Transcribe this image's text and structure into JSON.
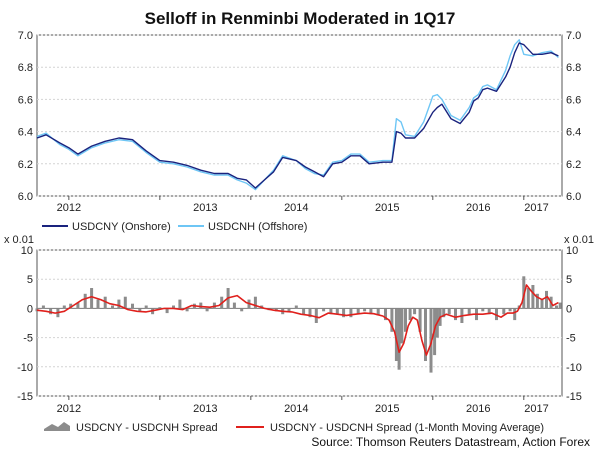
{
  "chart_data": {
    "title": "Selloff in Renminbi Moderated in 1Q17",
    "source": "Source: Thomson Reuters Datastream, Action Forex",
    "x_tick_labels": [
      "2012",
      "2013",
      "2014",
      "2015",
      "2016",
      "2017"
    ],
    "x_range": [
      2011.65,
      2017.42
    ],
    "panels": [
      {
        "type": "line",
        "ylim": [
          6.0,
          7.0
        ],
        "y_ticks": [
          "6.0",
          "6.2",
          "6.4",
          "6.6",
          "6.8",
          "7.0"
        ],
        "grid": true,
        "series": [
          {
            "name": "USDCNY (Onshore)",
            "color": "#1a237e",
            "x": [
              2011.65,
              2011.75,
              2011.9,
              2012.0,
              2012.1,
              2012.25,
              2012.4,
              2012.55,
              2012.7,
              2012.85,
              2013.0,
              2013.15,
              2013.3,
              2013.45,
              2013.6,
              2013.75,
              2013.85,
              2013.95,
              2014.05,
              2014.15,
              2014.25,
              2014.35,
              2014.5,
              2014.6,
              2014.7,
              2014.8,
              2014.9,
              2015.0,
              2015.1,
              2015.2,
              2015.3,
              2015.45,
              2015.55,
              2015.6,
              2015.65,
              2015.7,
              2015.8,
              2015.9,
              2016.0,
              2016.05,
              2016.1,
              2016.2,
              2016.3,
              2016.4,
              2016.45,
              2016.5,
              2016.55,
              2016.6,
              2016.7,
              2016.8,
              2016.85,
              2016.9,
              2016.95,
              2017.0,
              2017.1,
              2017.2,
              2017.3,
              2017.38
            ],
            "values": [
              6.36,
              6.38,
              6.33,
              6.3,
              6.26,
              6.31,
              6.34,
              6.36,
              6.35,
              6.28,
              6.22,
              6.21,
              6.19,
              6.16,
              6.14,
              6.14,
              6.11,
              6.1,
              6.05,
              6.1,
              6.15,
              6.24,
              6.22,
              6.18,
              6.15,
              6.12,
              6.2,
              6.21,
              6.25,
              6.25,
              6.2,
              6.21,
              6.21,
              6.4,
              6.39,
              6.36,
              6.36,
              6.42,
              6.52,
              6.55,
              6.57,
              6.48,
              6.45,
              6.52,
              6.59,
              6.61,
              6.66,
              6.67,
              6.65,
              6.74,
              6.8,
              6.89,
              6.95,
              6.94,
              6.88,
              6.88,
              6.89,
              6.87
            ]
          },
          {
            "name": "USDCNH (Offshore)",
            "color": "#6ec6f5",
            "x": [
              2011.65,
              2011.75,
              2011.9,
              2012.0,
              2012.1,
              2012.25,
              2012.4,
              2012.55,
              2012.7,
              2012.85,
              2013.0,
              2013.15,
              2013.3,
              2013.45,
              2013.6,
              2013.75,
              2013.85,
              2013.95,
              2014.05,
              2014.15,
              2014.25,
              2014.35,
              2014.5,
              2014.6,
              2014.7,
              2014.8,
              2014.9,
              2015.0,
              2015.1,
              2015.2,
              2015.3,
              2015.45,
              2015.55,
              2015.6,
              2015.65,
              2015.7,
              2015.8,
              2015.9,
              2016.0,
              2016.05,
              2016.1,
              2016.2,
              2016.3,
              2016.4,
              2016.45,
              2016.5,
              2016.55,
              2016.6,
              2016.7,
              2016.8,
              2016.85,
              2016.9,
              2016.95,
              2017.0,
              2017.1,
              2017.2,
              2017.3,
              2017.38
            ],
            "values": [
              6.37,
              6.39,
              6.32,
              6.29,
              6.25,
              6.3,
              6.33,
              6.35,
              6.34,
              6.27,
              6.21,
              6.2,
              6.18,
              6.15,
              6.13,
              6.13,
              6.1,
              6.08,
              6.04,
              6.1,
              6.16,
              6.25,
              6.22,
              6.17,
              6.14,
              6.13,
              6.21,
              6.22,
              6.26,
              6.26,
              6.21,
              6.22,
              6.22,
              6.48,
              6.46,
              6.38,
              6.37,
              6.46,
              6.62,
              6.63,
              6.6,
              6.5,
              6.47,
              6.55,
              6.61,
              6.63,
              6.68,
              6.69,
              6.66,
              6.78,
              6.87,
              6.94,
              6.97,
              6.88,
              6.87,
              6.89,
              6.9,
              6.86
            ]
          }
        ]
      },
      {
        "type": "bar+line",
        "ylim": [
          -15,
          10
        ],
        "y_ticks": [
          "10",
          "5",
          "0",
          "-5",
          "-10",
          "-15"
        ],
        "unit_label_left": "x 0.01",
        "unit_label_right": "x 0.01",
        "grid": true,
        "series": [
          {
            "name": "USDCNY - USDCNH Spread",
            "kind": "area",
            "color": "#8c8c8c",
            "x": [
              2011.65,
              2011.72,
              2011.8,
              2011.88,
              2011.95,
              2012.02,
              2012.1,
              2012.18,
              2012.25,
              2012.32,
              2012.4,
              2012.48,
              2012.55,
              2012.62,
              2012.7,
              2012.78,
              2012.85,
              2012.92,
              2013.0,
              2013.08,
              2013.15,
              2013.22,
              2013.3,
              2013.38,
              2013.45,
              2013.52,
              2013.6,
              2013.68,
              2013.75,
              2013.82,
              2013.9,
              2013.98,
              2014.05,
              2014.12,
              2014.2,
              2014.28,
              2014.35,
              2014.42,
              2014.5,
              2014.58,
              2014.65,
              2014.72,
              2014.8,
              2014.88,
              2014.95,
              2015.02,
              2015.1,
              2015.18,
              2015.25,
              2015.32,
              2015.4,
              2015.48,
              2015.55,
              2015.6,
              2015.63,
              2015.66,
              2015.7,
              2015.75,
              2015.8,
              2015.86,
              2015.92,
              2015.98,
              2016.02,
              2016.05,
              2016.08,
              2016.12,
              2016.18,
              2016.25,
              2016.32,
              2016.4,
              2016.48,
              2016.55,
              2016.62,
              2016.7,
              2016.78,
              2016.85,
              2016.9,
              2016.95,
              2017.0,
              2017.05,
              2017.1,
              2017.15,
              2017.2,
              2017.25,
              2017.3,
              2017.36,
              2017.4
            ],
            "values": [
              -0.5,
              0.5,
              -1,
              -1.5,
              0.5,
              0.8,
              1,
              2.5,
              3.5,
              1.5,
              2,
              0.5,
              1.5,
              2,
              0.8,
              -0.5,
              0.5,
              -1,
              0.2,
              -0.8,
              0.5,
              1.5,
              -0.5,
              0.8,
              1,
              -0.5,
              1,
              2,
              3.5,
              1,
              -0.5,
              1.5,
              2,
              0.5,
              -0.3,
              -0.5,
              -1,
              -0.5,
              0.5,
              -1,
              -1.5,
              -2.5,
              -0.5,
              -1,
              -1,
              -1.5,
              -1.5,
              -1,
              -0.5,
              -1,
              -1.2,
              -2,
              -4,
              -9,
              -10.5,
              -6,
              -4,
              -2,
              -1,
              -4,
              -9,
              -11,
              -8,
              -5,
              -3,
              -1.5,
              -1,
              -2,
              -2.5,
              -1,
              -2,
              -0.5,
              -1,
              -2,
              -1,
              -0.5,
              -2,
              0.5,
              5.5,
              3.5,
              4,
              2.5,
              1.5,
              3,
              2,
              0.5,
              1
            ]
          },
          {
            "name": "USDCNY - USDCNH Spread (1-Month Moving Average)",
            "kind": "line",
            "color": "#e0201c",
            "x": [
              2011.65,
              2011.75,
              2011.85,
              2011.95,
              2012.05,
              2012.15,
              2012.25,
              2012.35,
              2012.45,
              2012.55,
              2012.65,
              2012.75,
              2012.85,
              2012.95,
              2013.05,
              2013.15,
              2013.25,
              2013.35,
              2013.45,
              2013.55,
              2013.65,
              2013.75,
              2013.85,
              2013.95,
              2014.05,
              2014.15,
              2014.25,
              2014.35,
              2014.45,
              2014.55,
              2014.65,
              2014.75,
              2014.85,
              2014.95,
              2015.05,
              2015.15,
              2015.25,
              2015.35,
              2015.45,
              2015.52,
              2015.58,
              2015.63,
              2015.68,
              2015.73,
              2015.78,
              2015.83,
              2015.88,
              2015.93,
              2015.98,
              2016.03,
              2016.08,
              2016.15,
              2016.25,
              2016.35,
              2016.45,
              2016.55,
              2016.65,
              2016.75,
              2016.82,
              2016.88,
              2016.93,
              2016.98,
              2017.03,
              2017.08,
              2017.14,
              2017.2,
              2017.26,
              2017.32,
              2017.38
            ],
            "values": [
              -0.3,
              -0.5,
              -0.8,
              -0.5,
              0.5,
              1.5,
              2,
              1.5,
              0.8,
              0.5,
              -0.2,
              -0.5,
              -0.6,
              -0.3,
              0,
              0,
              -0.2,
              0.5,
              0.3,
              0.2,
              0.5,
              1.8,
              2.2,
              1,
              0.5,
              0,
              -0.3,
              -0.5,
              -0.6,
              -1,
              -1.2,
              -1.6,
              -0.8,
              -1,
              -1.2,
              -1,
              -0.8,
              -0.9,
              -1.3,
              -2,
              -4,
              -7.5,
              -6,
              -3,
              -1.5,
              -2,
              -5.5,
              -8,
              -6,
              -3,
              -1.5,
              -1,
              -1.5,
              -1.2,
              -1,
              -1,
              -0.8,
              -1.5,
              -0.8,
              -0.8,
              -0.5,
              1,
              4,
              3,
              2,
              1.5,
              2,
              0.5,
              1
            ]
          }
        ]
      }
    ]
  }
}
